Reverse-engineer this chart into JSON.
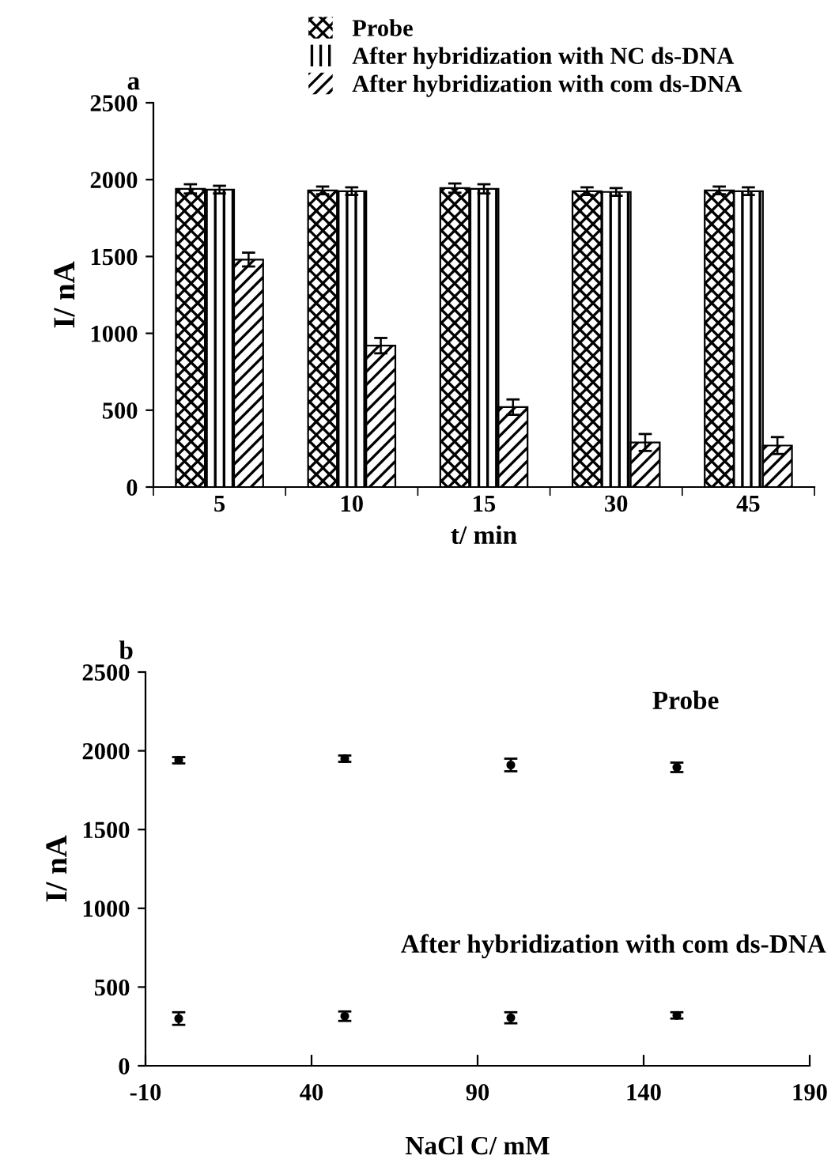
{
  "chart_data": [
    {
      "type": "bar",
      "title": "a",
      "xlabel": "t/ min",
      "ylabel": "I/ nA",
      "categories": [
        "5",
        "10",
        "15",
        "30",
        "45"
      ],
      "series": [
        {
          "name": "Probe",
          "color": "#000000",
          "values": [
            1940,
            1930,
            1945,
            1925,
            1930
          ],
          "errors": [
            30,
            25,
            30,
            25,
            25
          ]
        },
        {
          "name": "After hybridization with NC ds-DNA",
          "color": "#000000",
          "values": [
            1935,
            1925,
            1940,
            1920,
            1925
          ],
          "errors": [
            25,
            25,
            30,
            25,
            25
          ]
        },
        {
          "name": "After hybridization with com ds-DNA",
          "color": "#000000",
          "values": [
            1480,
            920,
            520,
            290,
            270
          ],
          "errors": [
            45,
            50,
            50,
            55,
            55
          ]
        }
      ],
      "ylim": [
        0,
        2500
      ],
      "yticks": [
        0,
        500,
        1000,
        1500,
        2000,
        2500
      ],
      "legend": "top",
      "grid": false
    },
    {
      "type": "scatter",
      "title": "b",
      "xlabel": "NaCl C/ mM",
      "ylabel": "I/ nA",
      "marker": "circle",
      "series": [
        {
          "name": "Probe",
          "color": "#000000",
          "x": [
            0,
            50,
            100,
            150
          ],
          "values": [
            1940,
            1950,
            1910,
            1895
          ],
          "errors": [
            20,
            20,
            40,
            30
          ]
        },
        {
          "name": "After hybridization with com ds-DNA",
          "color": "#000000",
          "x": [
            0,
            50,
            100,
            150
          ],
          "values": [
            300,
            315,
            305,
            320
          ],
          "errors": [
            40,
            30,
            35,
            20
          ]
        }
      ],
      "xlim": [
        -10,
        190
      ],
      "xticks": [
        -10,
        40,
        90,
        140,
        190
      ],
      "ylim": [
        0,
        2500
      ],
      "yticks": [
        0,
        500,
        1000,
        1500,
        2000,
        2500
      ],
      "legend": false,
      "grid": false
    }
  ]
}
